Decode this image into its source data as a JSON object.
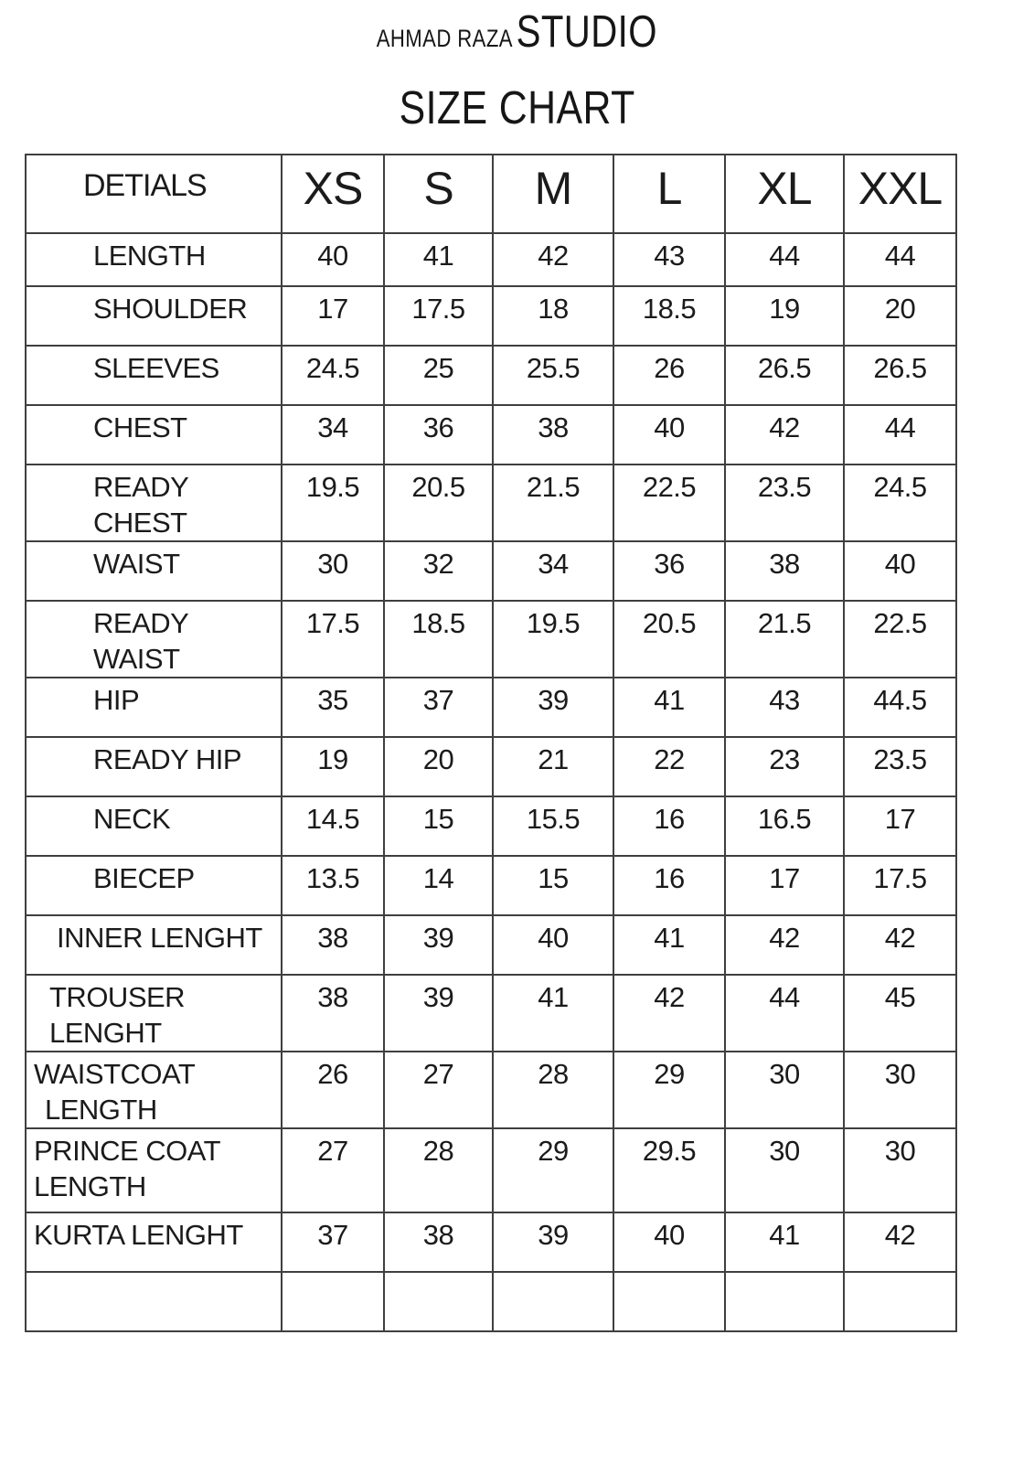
{
  "header": {
    "brand_small": "AHMAD RAZA",
    "brand_large": "STUDIO",
    "page_title": "SIZE CHART"
  },
  "table": {
    "columns": [
      "DETIALS",
      "XS",
      "S",
      "M",
      "L",
      "XL",
      "XXL"
    ],
    "rows": [
      {
        "label": "LENGTH",
        "values": [
          "40",
          "41",
          "42",
          "43",
          "44",
          "44"
        ]
      },
      {
        "label": "SHOULDER",
        "values": [
          "17",
          "17.5",
          "18",
          "18.5",
          "19",
          "20"
        ]
      },
      {
        "label": "SLEEVES",
        "values": [
          "24.5",
          "25",
          "25.5",
          "26",
          "26.5",
          "26.5"
        ]
      },
      {
        "label": "CHEST",
        "values": [
          "34",
          "36",
          "38",
          "40",
          "42",
          "44"
        ]
      },
      {
        "label": "READY CHEST",
        "values": [
          "19.5",
          "20.5",
          "21.5",
          "22.5",
          "23.5",
          "24.5"
        ]
      },
      {
        "label": "WAIST",
        "values": [
          "30",
          "32",
          "34",
          "36",
          "38",
          "40"
        ]
      },
      {
        "label": "READY WAIST",
        "values": [
          "17.5",
          "18.5",
          "19.5",
          "20.5",
          "21.5",
          "22.5"
        ]
      },
      {
        "label": "HIP",
        "values": [
          "35",
          "37",
          "39",
          "41",
          "43",
          "44.5"
        ]
      },
      {
        "label": "READY HIP",
        "values": [
          "19",
          "20",
          "21",
          "22",
          "23",
          "23.5"
        ]
      },
      {
        "label": "NECK",
        "values": [
          "14.5",
          "15",
          "15.5",
          "16",
          "16.5",
          "17"
        ]
      },
      {
        "label": "BIECEP",
        "values": [
          "13.5",
          "14",
          "15",
          "16",
          "17",
          "17.5"
        ]
      },
      {
        "label": "INNER LENGHT",
        "values": [
          "38",
          "39",
          "40",
          "41",
          "42",
          "42"
        ]
      },
      {
        "label": "TROUSER LENGHT",
        "values": [
          "38",
          "39",
          "41",
          "42",
          "44",
          "45"
        ]
      },
      {
        "label": "WAISTCOAT LENGTH",
        "values": [
          "26",
          "27",
          "28",
          "29",
          "30",
          "30"
        ]
      },
      {
        "label": "PRINCE COAT LENGTH",
        "values": [
          "27",
          "28",
          "29",
          "29.5",
          "30",
          "30"
        ]
      },
      {
        "label": "KURTA LENGHT",
        "values": [
          "37",
          "38",
          "39",
          "40",
          "41",
          "42"
        ]
      },
      {
        "label": "",
        "values": [
          "",
          "",
          "",
          "",
          "",
          ""
        ]
      }
    ]
  }
}
